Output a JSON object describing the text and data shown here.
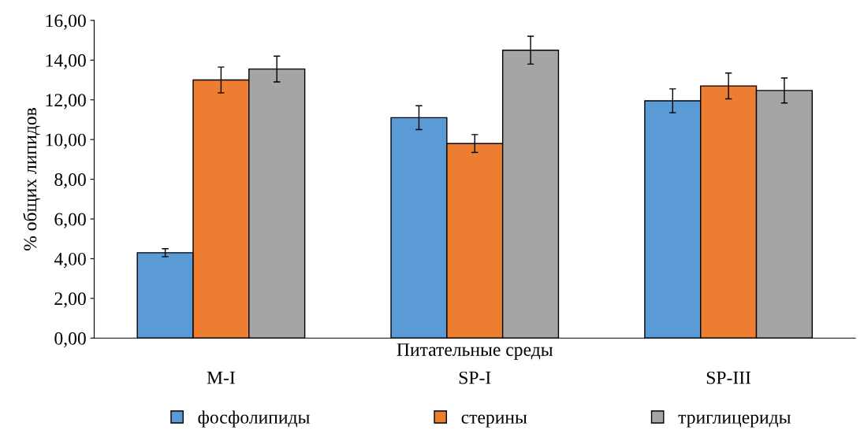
{
  "chart_data": {
    "type": "bar",
    "xlabel": "Питательные среды",
    "ylabel": "% общих липидов",
    "categories": [
      "M-I",
      "SP-I",
      "SP-III"
    ],
    "series": [
      {
        "name": "фосфолипиды",
        "color": "#5b9bd5",
        "values": [
          4.3,
          11.1,
          11.95
        ],
        "errors": [
          0.2,
          0.6,
          0.6
        ]
      },
      {
        "name": "стерины",
        "color": "#ed7d31",
        "values": [
          13.0,
          9.8,
          12.7
        ],
        "errors": [
          0.65,
          0.45,
          0.65
        ]
      },
      {
        "name": "триглицериды",
        "color": "#a5a5a5",
        "values": [
          13.55,
          14.5,
          12.47
        ],
        "errors": [
          0.65,
          0.7,
          0.63
        ]
      }
    ],
    "ylim": [
      0,
      16
    ],
    "yticks": [
      {
        "value": 0,
        "label": "0,00"
      },
      {
        "value": 2,
        "label": "2,00"
      },
      {
        "value": 4,
        "label": "4,00"
      },
      {
        "value": 6,
        "label": "6,00"
      },
      {
        "value": 8,
        "label": "8,00"
      },
      {
        "value": 10,
        "label": "10,00"
      },
      {
        "value": 12,
        "label": "12,00"
      },
      {
        "value": 14,
        "label": "14,00"
      },
      {
        "value": 16,
        "label": "16,00"
      }
    ],
    "grid": false,
    "legend": "bottom",
    "marker": "square"
  }
}
